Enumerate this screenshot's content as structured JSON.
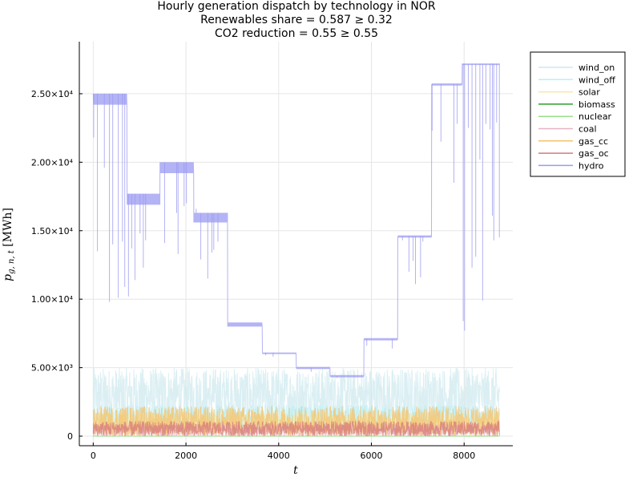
{
  "chart_data": {
    "type": "line",
    "title_lines": [
      "Hourly generation dispatch by technology in NOR",
      "Renewables share = 0.587 ≥ 0.32",
      "CO2 reduction = 0.55 ≥ 0.55"
    ],
    "xlabel": "t",
    "ylabel": "p_{g,n,t} [MWh]",
    "xlim": [
      -300,
      9050
    ],
    "ylim": [
      -700,
      28800
    ],
    "xticks": [
      0,
      2000,
      4000,
      6000,
      8000
    ],
    "xtick_labels": [
      "0",
      "2000",
      "4000",
      "6000",
      "8000"
    ],
    "yticks": [
      0,
      5000,
      10000,
      15000,
      20000,
      25000
    ],
    "ytick_labels": [
      "0",
      "5.00×10³",
      "1.00×10⁴",
      "1.50×10⁴",
      "2.00×10⁴",
      "2.50×10⁴"
    ],
    "grid": true,
    "legend_position": "outside-top-right",
    "series": [
      {
        "name": "wind_on",
        "color": "#cfe9ef",
        "style": "noise",
        "base": 800,
        "amp": 4200
      },
      {
        "name": "wind_off",
        "color": "#b8f0f5",
        "style": "noise",
        "base": 300,
        "amp": 2000
      },
      {
        "name": "solar",
        "color": "#f7e9a8",
        "style": "noise",
        "base": 0,
        "amp": 1800
      },
      {
        "name": "biomass",
        "color": "#2ca02c",
        "style": "flat",
        "value": 0
      },
      {
        "name": "nuclear",
        "color": "#98df8a",
        "style": "flat",
        "value": 0
      },
      {
        "name": "coal",
        "color": "#e6b3c3",
        "style": "noise",
        "base": 0,
        "amp": 900
      },
      {
        "name": "gas_cc",
        "color": "#f6c26b",
        "style": "noise",
        "base": 0,
        "amp": 2200
      },
      {
        "name": "gas_oc",
        "color": "#d77a7a",
        "style": "noise",
        "base": 0,
        "amp": 1100
      },
      {
        "name": "hydro",
        "color": "#9a9af2",
        "style": "steps",
        "steps": [
          {
            "x0": 0,
            "x1": 730,
            "top": 25000,
            "base": 24200
          },
          {
            "x0": 730,
            "x1": 1440,
            "top": 17700,
            "base": 16900
          },
          {
            "x0": 1440,
            "x1": 2170,
            "top": 20000,
            "base": 19200
          },
          {
            "x0": 2170,
            "x1": 2900,
            "top": 16300,
            "base": 15600
          },
          {
            "x0": 2900,
            "x1": 3650,
            "top": 8300,
            "base": 8000
          },
          {
            "x0": 3650,
            "x1": 4380,
            "top": 6100,
            "base": 6000
          },
          {
            "x0": 4380,
            "x1": 5110,
            "top": 5000,
            "base": 4950
          },
          {
            "x0": 5110,
            "x1": 5840,
            "top": 4400,
            "base": 4350
          },
          {
            "x0": 5840,
            "x1": 6570,
            "top": 7100,
            "base": 7050
          },
          {
            "x0": 6570,
            "x1": 7300,
            "top": 14600,
            "base": 14550
          },
          {
            "x0": 7300,
            "x1": 7960,
            "top": 25700,
            "base": 25650
          },
          {
            "x0": 7960,
            "x1": 8760,
            "top": 27200,
            "base": 27100
          }
        ],
        "dips": [
          [
            10,
            21800
          ],
          [
            90,
            13500
          ],
          [
            240,
            19600
          ],
          [
            350,
            9800
          ],
          [
            420,
            14000
          ],
          [
            540,
            10100
          ],
          [
            630,
            14200
          ],
          [
            680,
            10900
          ],
          [
            760,
            10200
          ],
          [
            830,
            13700
          ],
          [
            900,
            11400
          ],
          [
            1010,
            14800
          ],
          [
            1080,
            12300
          ],
          [
            1130,
            14300
          ],
          [
            1540,
            14100
          ],
          [
            1800,
            16300
          ],
          [
            1830,
            13300
          ],
          [
            1960,
            16800
          ],
          [
            2010,
            17000
          ],
          [
            2220,
            16600
          ],
          [
            2320,
            12900
          ],
          [
            2470,
            11500
          ],
          [
            2560,
            13400
          ],
          [
            2600,
            13600
          ],
          [
            2690,
            14200
          ],
          [
            3720,
            5900
          ],
          [
            3880,
            5800
          ],
          [
            4700,
            4700
          ],
          [
            5260,
            4250
          ],
          [
            5900,
            6600
          ],
          [
            6450,
            6400
          ],
          [
            6670,
            14300
          ],
          [
            6810,
            12000
          ],
          [
            6900,
            12800
          ],
          [
            6950,
            11100
          ],
          [
            7060,
            11600
          ],
          [
            7110,
            14200
          ],
          [
            7310,
            22300
          ],
          [
            7500,
            21500
          ],
          [
            7780,
            18500
          ],
          [
            7850,
            22800
          ],
          [
            7980,
            8400
          ],
          [
            8010,
            7700
          ],
          [
            8090,
            22500
          ],
          [
            8170,
            12300
          ],
          [
            8250,
            13100
          ],
          [
            8340,
            20200
          ],
          [
            8400,
            9900
          ],
          [
            8470,
            22800
          ],
          [
            8560,
            22400
          ],
          [
            8610,
            16100
          ],
          [
            8640,
            14300
          ],
          [
            8700,
            22900
          ],
          [
            8760,
            14500
          ]
        ]
      }
    ]
  }
}
